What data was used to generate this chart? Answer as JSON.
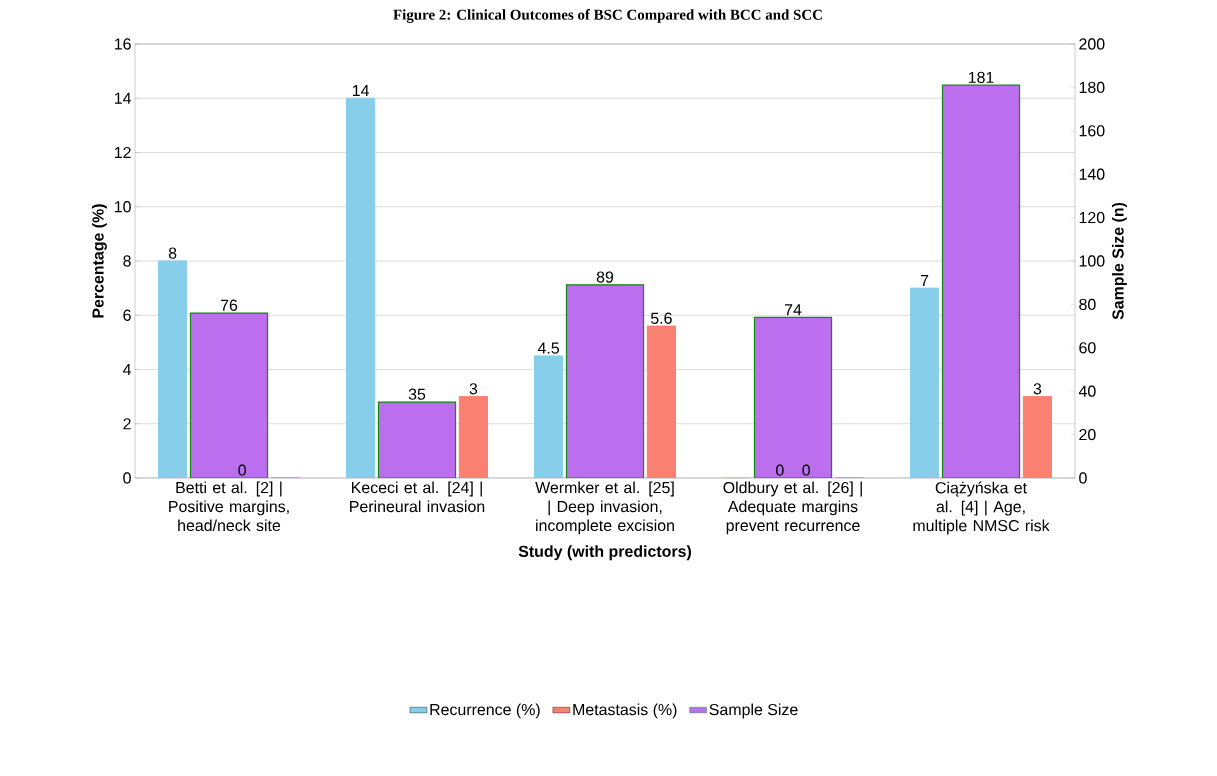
{
  "chart_data": {
    "type": "bar",
    "title": "Figure 2: Clinical Outcomes of BSC Compared with BCC and SCC",
    "xlabel": "Study (with predictors)",
    "ylabel": "Percentage (%)",
    "y2label": "Sample Size (n)",
    "categories": [
      "Betti et al. [2] | Positive margins, head/neck site",
      "Kececi et al. [24] | Perineural invasion",
      "Wermker et al. [25] | Deep invasion, incomplete excision",
      "Oldbury et al. [26] | Adequate margins prevent recurrence",
      "Ciążyńska et al. [4] | Age, multiple NMSC risk"
    ],
    "series": [
      {
        "name": "Recurrence (%)",
        "color": "#87ceeb",
        "values": [
          8,
          14,
          4.5,
          0,
          7
        ]
      },
      {
        "name": "Metastasis (%)",
        "color": "#fa8072",
        "values": [
          0,
          3,
          5.6,
          0,
          3
        ]
      },
      {
        "name": "Sample Size",
        "color": "#bb6fee",
        "axis": "y2",
        "values": [
          76,
          35,
          89,
          74,
          181
        ]
      }
    ],
    "ylim": [
      0,
      16
    ],
    "yticks": [
      0,
      2,
      4,
      6,
      8,
      10,
      12,
      14,
      16
    ],
    "y2lim": [
      0,
      200
    ],
    "y2ticks": [
      0,
      20,
      40,
      60,
      80,
      100,
      120,
      140,
      160,
      180,
      200
    ],
    "grid": "y",
    "legend": "bottom",
    "data_labels": true
  }
}
